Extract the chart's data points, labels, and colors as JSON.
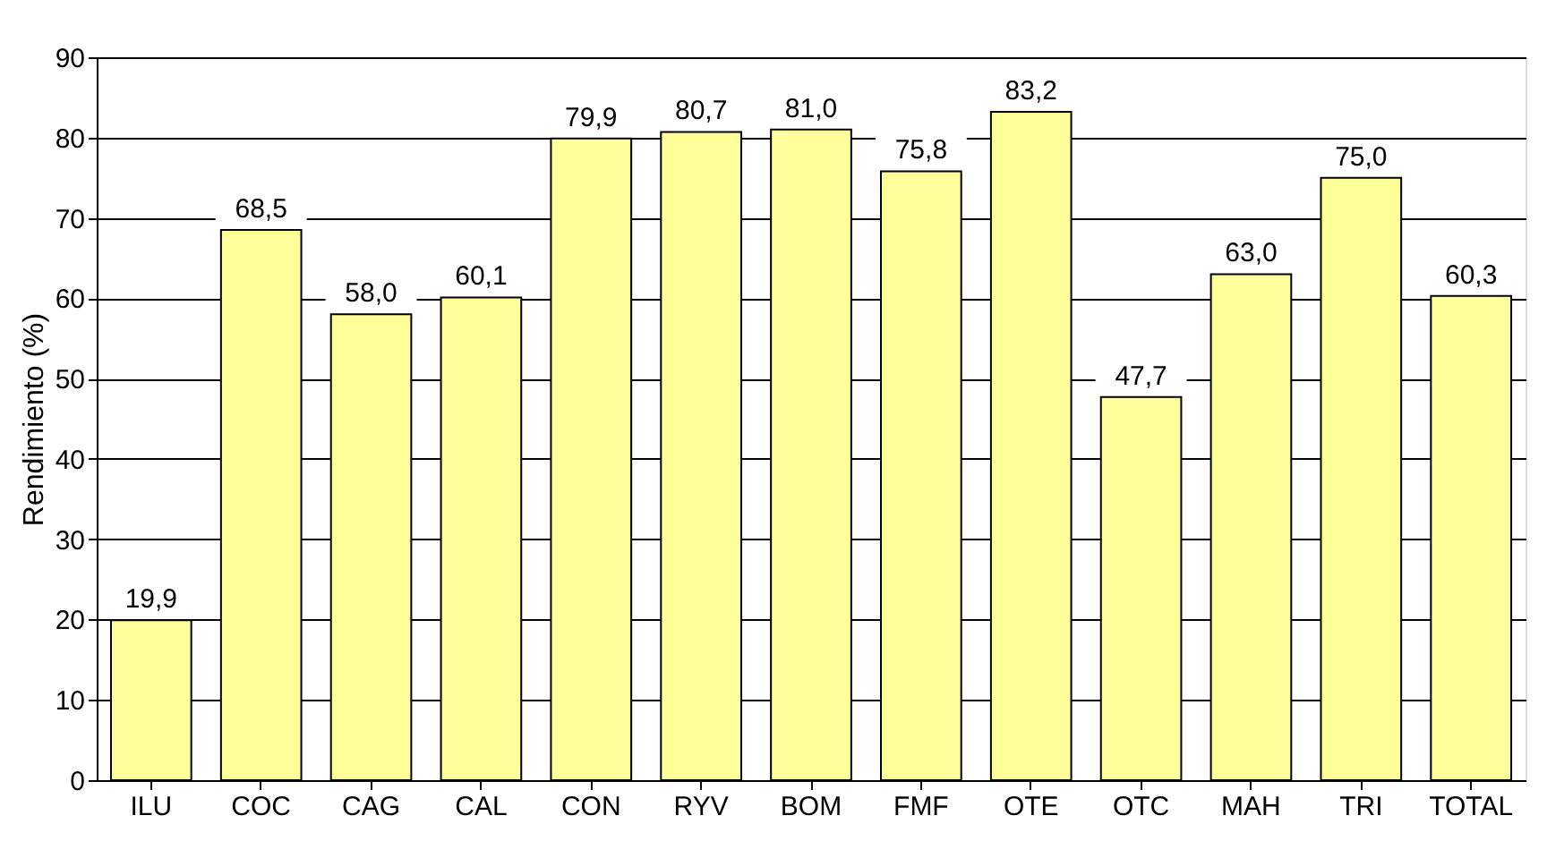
{
  "chart_data": {
    "type": "bar",
    "ylabel": "Rendimiento (%)",
    "categories": [
      "ILU",
      "COC",
      "CAG",
      "CAL",
      "CON",
      "RYV",
      "BOM",
      "FMF",
      "OTE",
      "OTC",
      "MAH",
      "TRI",
      "TOTAL"
    ],
    "values": [
      19.9,
      68.5,
      58.0,
      60.1,
      79.9,
      80.7,
      81.0,
      75.8,
      83.2,
      47.7,
      63.0,
      75.0,
      60.3
    ],
    "value_labels": [
      "19,9",
      "68,5",
      "58,0",
      "60,1",
      "79,9",
      "80,7",
      "81,0",
      "75,8",
      "83,2",
      "47,7",
      "63,0",
      "75,0",
      "60,3"
    ],
    "color": "#ffff99",
    "ylim": [
      0,
      90
    ],
    "yticks": [
      0,
      10,
      20,
      30,
      40,
      50,
      60,
      70,
      80,
      90
    ],
    "grid": "y"
  }
}
